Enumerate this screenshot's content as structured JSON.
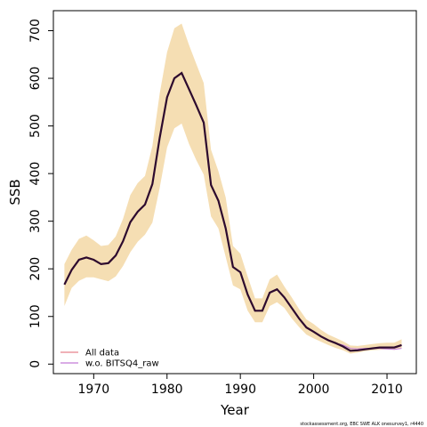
{
  "chart_data": {
    "type": "line",
    "xlabel": "Year",
    "ylabel": "SSB",
    "xlim": [
      1964.5,
      2014
    ],
    "ylim": [
      -20,
      742
    ],
    "xticks": [
      1970,
      1980,
      1990,
      2000,
      2010
    ],
    "yticks": [
      0,
      100,
      200,
      300,
      400,
      500,
      600,
      700
    ],
    "x": [
      1966,
      1967,
      1968,
      1969,
      1970,
      1971,
      1972,
      1973,
      1974,
      1975,
      1976,
      1977,
      1978,
      1979,
      1980,
      1981,
      1982,
      1983,
      1984,
      1985,
      1986,
      1987,
      1988,
      1989,
      1990,
      1991,
      1992,
      1993,
      1994,
      1995,
      1996,
      1997,
      1998,
      1999,
      2000,
      2001,
      2002,
      2003,
      2004,
      2005,
      2006,
      2007,
      2008,
      2009,
      2010,
      2011,
      2012
    ],
    "series": [
      {
        "name": "All data",
        "color": "#e8828c",
        "values": [
          167,
          198,
          219,
          224,
          219,
          210,
          212,
          228,
          258,
          298,
          320,
          335,
          378,
          475,
          560,
          600,
          611,
          577,
          543,
          507,
          376,
          343,
          285,
          204,
          193,
          146,
          112,
          112,
          150,
          157,
          140,
          118,
          96,
          77,
          68,
          58,
          50,
          44,
          37,
          28,
          29,
          31,
          33,
          35,
          35,
          35,
          40
        ]
      },
      {
        "name": "w.o. BITSQ4_raw",
        "color": "#c27ad6",
        "values": [
          167,
          198,
          219,
          224,
          219,
          210,
          212,
          228,
          258,
          298,
          320,
          335,
          378,
          475,
          560,
          600,
          611,
          577,
          543,
          507,
          376,
          343,
          285,
          204,
          193,
          146,
          112,
          112,
          150,
          157,
          140,
          118,
          96,
          77,
          68,
          58,
          50,
          44,
          40,
          33,
          32,
          33,
          33,
          33,
          32,
          31,
          33
        ]
      }
    ],
    "band": {
      "color": "#f5deb3",
      "lower": [
        122,
        160,
        175,
        182,
        182,
        178,
        174,
        184,
        206,
        235,
        257,
        272,
        297,
        370,
        455,
        495,
        505,
        462,
        428,
        398,
        310,
        285,
        225,
        165,
        157,
        112,
        88,
        88,
        122,
        130,
        118,
        96,
        78,
        62,
        54,
        47,
        40,
        34,
        29,
        22,
        24,
        27,
        29,
        30,
        31,
        30,
        34
      ],
      "upper": [
        210,
        240,
        263,
        270,
        260,
        248,
        250,
        268,
        305,
        355,
        380,
        395,
        458,
        568,
        655,
        705,
        715,
        670,
        630,
        590,
        450,
        405,
        350,
        248,
        232,
        184,
        138,
        138,
        178,
        188,
        163,
        140,
        116,
        94,
        84,
        72,
        62,
        55,
        48,
        39,
        38,
        40,
        42,
        44,
        45,
        45,
        52
      ]
    },
    "main_line": {
      "color": "#2d0a2e",
      "values": [
        167,
        198,
        219,
        224,
        219,
        210,
        212,
        228,
        258,
        298,
        320,
        335,
        378,
        475,
        560,
        600,
        611,
        577,
        543,
        507,
        376,
        343,
        285,
        204,
        193,
        146,
        112,
        112,
        150,
        157,
        140,
        118,
        96,
        77,
        68,
        58,
        50,
        44,
        37,
        28,
        29,
        31,
        33,
        35,
        35,
        35,
        40
      ]
    },
    "legend_position": "bottom-left",
    "grid": false
  },
  "footnote": "stockassessment.org, EBC SWE ALK onesurvey1, r4440"
}
